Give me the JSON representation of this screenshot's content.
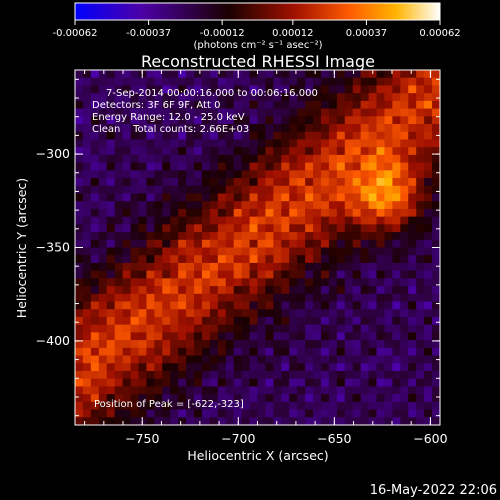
{
  "chart_data": {
    "type": "heatmap",
    "title": "Reconstructed RHESSI Image",
    "xlabel": "Heliocentric X (arcsec)",
    "ylabel": "Heliocentric Y (arcsec)",
    "xlim": [
      -785,
      -595
    ],
    "ylim": [
      -445,
      -255
    ],
    "x_ticks": [
      -750,
      -700,
      -650,
      -600
    ],
    "x_tick_labels": [
      "−750",
      "−700",
      "−650",
      "−600"
    ],
    "y_ticks": [
      -300,
      -350,
      -400
    ],
    "y_tick_labels": [
      "−300",
      "−350",
      "−400"
    ],
    "colorbar": {
      "ticks": [
        -0.00062,
        -0.00037,
        -0.00012,
        0.00012,
        0.00037,
        0.00062
      ],
      "tick_labels": [
        "-0.00062",
        "-0.00037",
        "-0.00012",
        "0.00012",
        "0.00037",
        "0.00062"
      ],
      "unit_label": "(photons cm⁻² s⁻¹ asec⁻²)",
      "colormap": [
        "#0000ff",
        "#4c00a8",
        "#1a0000",
        "#a01000",
        "#ff5a00",
        "#ffb400",
        "#ffffff"
      ]
    },
    "annotations": {
      "line1": "7-Sep-2014 00:00:16.000 to 00:06:16.000",
      "line2": "Detectors: 3F 6F 9F, Att 0",
      "line3": "Energy Range: 12.0 - 25.0 keV",
      "line4": "Clean    Total counts: 2.66E+03",
      "peak": "Position of Peak = [-622,-323]"
    },
    "peak_position": [
      -622,
      -323
    ],
    "grid": false
  },
  "footer": {
    "date": "16-May-2022 22:06"
  }
}
